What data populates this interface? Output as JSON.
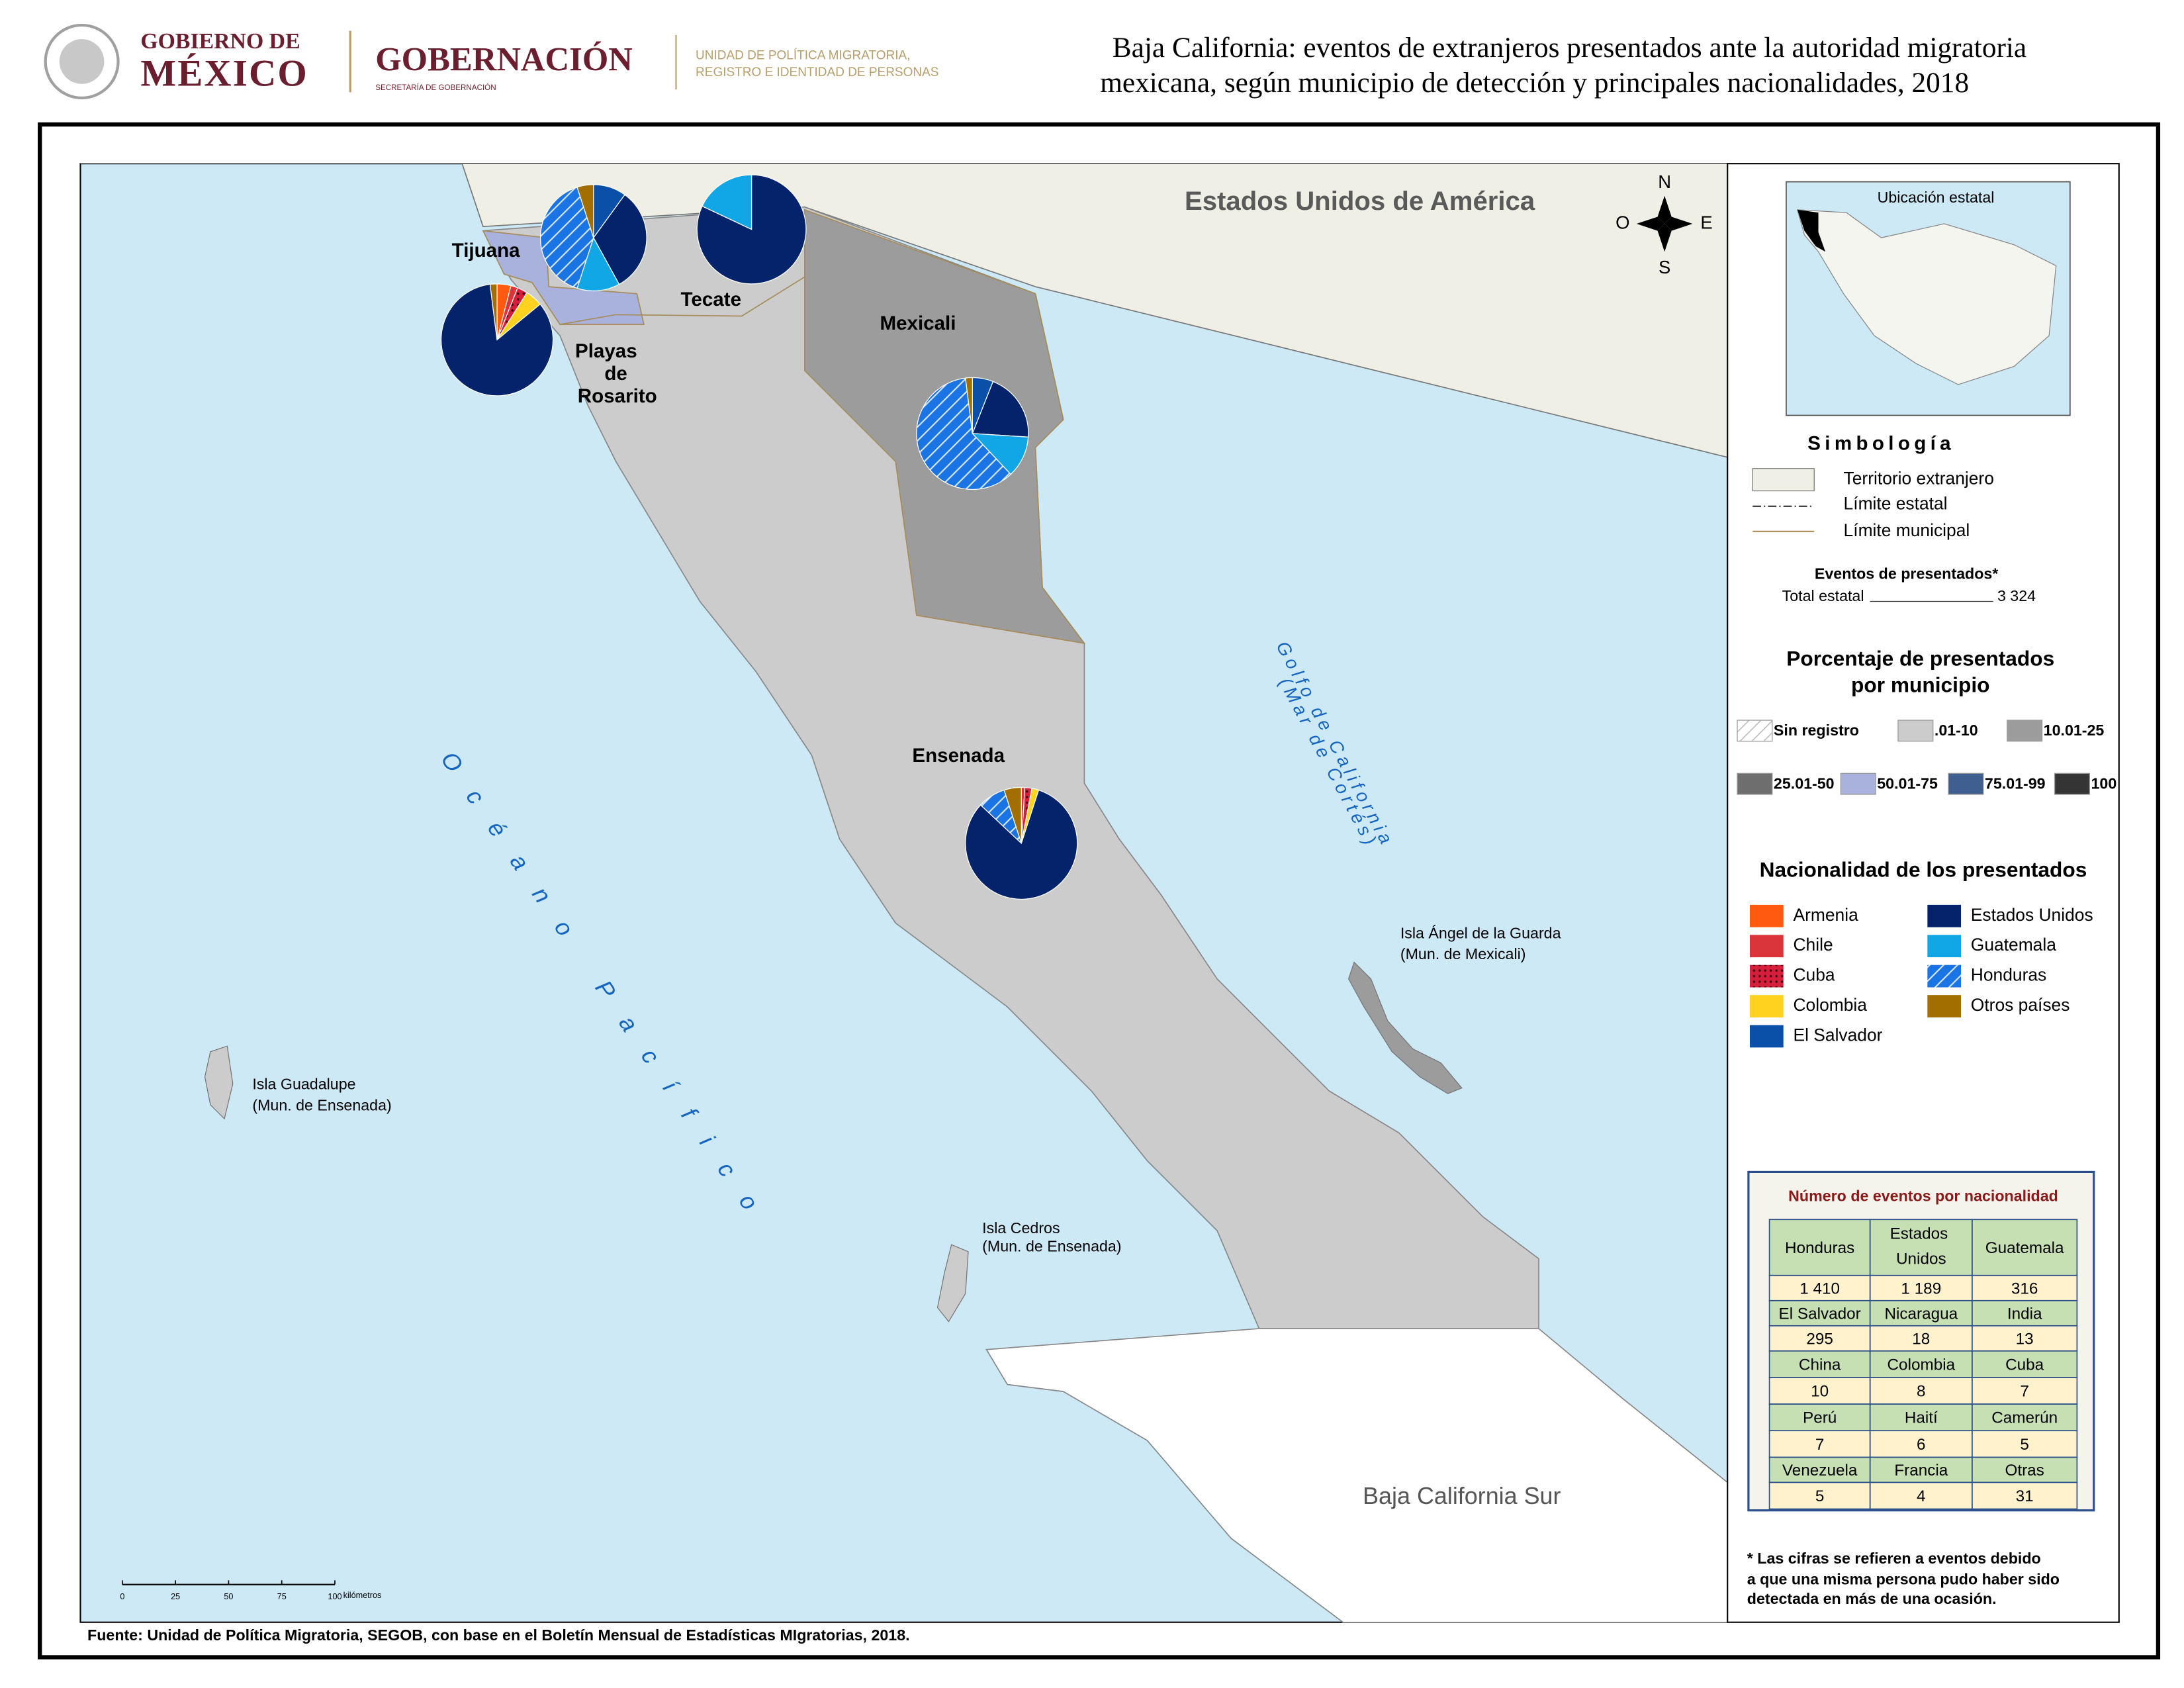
{
  "header": {
    "gov_line1": "GOBIERNO DE",
    "gov_line2": "MÉXICO",
    "ministry": "GOBERNACIÓN",
    "ministry_sub": "SECRETARÍA DE GOBERNACIÓN",
    "unit_line1": "UNIDAD DE POLÍTICA MIGRATORIA,",
    "unit_line2": "REGISTRO E IDENTIDAD DE PERSONAS",
    "title_line1": "Baja California: eventos de extranjeros presentados ante la autoridad migratoria",
    "title_line2": "mexicana, según municipio de detección y principales nacionalidades, 2018"
  },
  "map": {
    "usa": "Estados Unidos de América",
    "tijuana": "Tijuana",
    "tecate": "Tecate",
    "rosarito": [
      "Playas",
      "de",
      "Rosarito"
    ],
    "mexicali": "Mexicali",
    "ensenada": "Ensenada",
    "gulf": [
      "Golfo de California",
      "(Mar de Cortés)"
    ],
    "ocean": "Océano Pacífico",
    "isla_angel": [
      "Isla Ángel de la Guarda",
      "(Mun. de Mexicali)"
    ],
    "isla_guadalupe": [
      "Isla Guadalupe",
      "(Mun. de Ensenada)"
    ],
    "isla_cedros": [
      "Isla Cedros",
      "(Mun. de Ensenada)"
    ],
    "bcs": "Baja California Sur"
  },
  "compass": {
    "n": "N",
    "s": "S",
    "w": "O",
    "e": "E"
  },
  "scale": {
    "ticks": [
      0,
      25,
      50,
      75,
      100
    ],
    "unit": "kilómetros"
  },
  "pies": [
    {
      "values": [
        0,
        0,
        0,
        0,
        10,
        32,
        13,
        40,
        5
      ]
    },
    {
      "values": [
        0,
        0,
        0,
        0,
        0,
        82,
        18,
        0,
        0
      ]
    },
    {
      "values": [
        4,
        2,
        3,
        5,
        0,
        84,
        0,
        0,
        2
      ]
    },
    {
      "values": [
        0,
        0,
        0,
        0,
        6,
        20,
        12,
        60,
        2
      ]
    },
    {
      "values": [
        0,
        1,
        2,
        2,
        0,
        82,
        0,
        8,
        5
      ]
    }
  ],
  "legend": {
    "inset_title": "Ubicación estatal",
    "symbology": "Simbología",
    "foreign": "Territorio extranjero",
    "state_limit": "Límite estatal",
    "municipal_limit": "Límite municipal",
    "events_title": "Eventos de presentados*",
    "total_label": "Total estatal",
    "total_value": "3 324",
    "percent_title": [
      "Porcentaje de presentados",
      "por municipio"
    ],
    "classes": [
      {
        "label": "Sin registro",
        "color": "#ffffff",
        "pattern": "hatch"
      },
      {
        "label": ".01-10",
        "color": "#cccccc"
      },
      {
        "label": "10.01-25",
        "color": "#9c9c9c"
      },
      {
        "label": "25.01-50",
        "color": "#6e6e6e"
      },
      {
        "label": "50.01-75",
        "color": "#a9b1dd"
      },
      {
        "label": "75.01-99",
        "color": "#3f5f91"
      },
      {
        "label": "100",
        "color": "#343434"
      }
    ],
    "nationality_title": "Nacionalidad de los presentados",
    "nationalities": [
      {
        "name": "Armenia",
        "color": "#ff5a0f"
      },
      {
        "name": "Chile",
        "color": "#d9353a"
      },
      {
        "name": "Cuba",
        "color": "#d61f3a",
        "pattern": "dots"
      },
      {
        "name": "Colombia",
        "color": "#ffd21f"
      },
      {
        "name": "El Salvador",
        "color": "#0a4fa8"
      },
      {
        "name": "Estados Unidos",
        "color": "#04236b"
      },
      {
        "name": "Guatemala",
        "color": "#11a7e6"
      },
      {
        "name": "Honduras",
        "color": "#1b74e4",
        "pattern": "hatch"
      },
      {
        "name": "Otros países",
        "color": "#a36e00"
      }
    ]
  },
  "table": {
    "title": "Número de eventos por nacionalidad",
    "rows": [
      [
        "Honduras",
        "Estados Unidos",
        "Guatemala"
      ],
      [
        "1 410",
        "1 189",
        "316"
      ],
      [
        "El Salvador",
        "Nicaragua",
        "India"
      ],
      [
        "295",
        "18",
        "13"
      ],
      [
        "China",
        "Colombia",
        "Cuba"
      ],
      [
        "10",
        "8",
        "7"
      ],
      [
        "Perú",
        "Haití",
        "Camerún"
      ],
      [
        "7",
        "6",
        "5"
      ],
      [
        "Venezuela",
        "Francia",
        "Otras"
      ],
      [
        "5",
        "4",
        "31"
      ]
    ]
  },
  "footnote": [
    "* Las cifras se refieren a eventos debido",
    "a que una misma persona pudo haber sido",
    "detectada en más de una ocasión."
  ],
  "source": "Fuente: Unidad de Política Migratoria, SEGOB, con base en el Boletín Mensual de Estadísticas MIgratorias, 2018."
}
